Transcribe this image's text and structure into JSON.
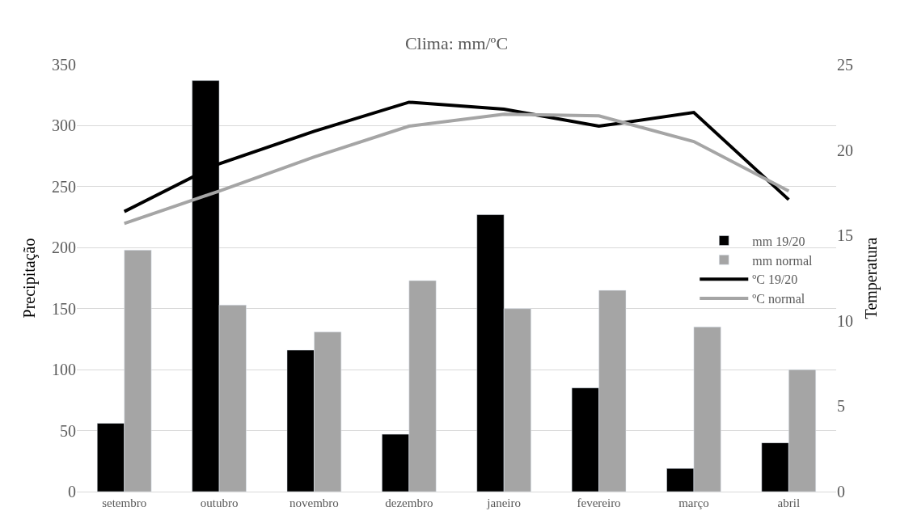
{
  "chart_data": {
    "type": "bar",
    "title": "Clima: mm/ºC",
    "ylabel": "Precipitação",
    "y2label": "Temperatura",
    "categories": [
      "setembro",
      "outubro",
      "novembro",
      "dezembro",
      "janeiro",
      "fevereiro",
      "março",
      "abril"
    ],
    "series": [
      {
        "name": "mm 19/20",
        "color": "#000000",
        "values": [
          56,
          337,
          116,
          47,
          227,
          85,
          19,
          40
        ]
      },
      {
        "name": "mm normal",
        "color": "#a5a5a5",
        "values": [
          198,
          153,
          131,
          173,
          150,
          165,
          135,
          100
        ]
      },
      {
        "name": "ºC 19/20",
        "type": "line",
        "axis": "y2",
        "color": "#000000",
        "values": [
          16.4,
          19.2,
          21.1,
          22.8,
          22.4,
          21.4,
          22.2,
          17.1
        ]
      },
      {
        "name": "ºC normal",
        "type": "line",
        "axis": "y2",
        "color": "#a5a5a5",
        "values": [
          15.7,
          17.6,
          19.6,
          21.4,
          22.1,
          22.0,
          20.5,
          17.6
        ]
      }
    ],
    "ylim": [
      0,
      350
    ],
    "yticks": [
      0,
      50,
      100,
      150,
      200,
      250,
      300,
      350
    ],
    "y2lim": [
      0,
      25
    ],
    "y2ticks": [
      0,
      5,
      10,
      15,
      20,
      25
    ],
    "grid": "y",
    "legend": "right",
    "marker": "none",
    "line_style": "solid"
  }
}
